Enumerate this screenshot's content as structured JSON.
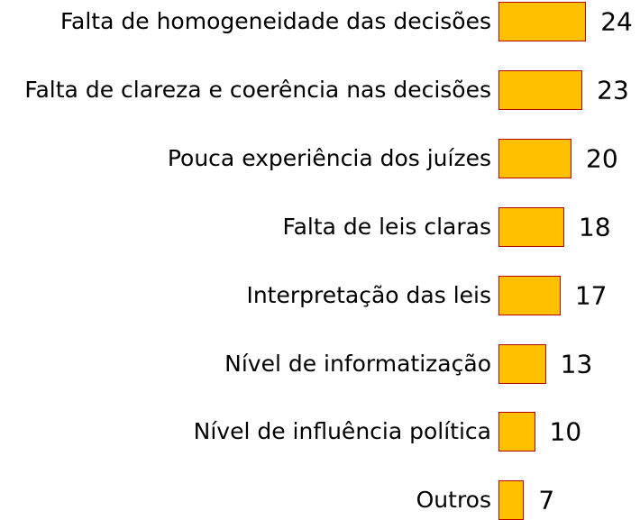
{
  "chart_data": {
    "type": "bar",
    "orientation": "horizontal",
    "categories": [
      "Falta de homogeneidade das decisões",
      "Falta de clareza e coerência nas decisões",
      "Pouca experiência dos juízes",
      "Falta de leis claras",
      "Interpretação das leis",
      "Nível de informatização",
      "Nível de influência política",
      "Outros"
    ],
    "values": [
      24,
      23,
      20,
      18,
      17,
      13,
      10,
      7
    ],
    "color": "#ffc000",
    "edge_color": "#c00000"
  }
}
